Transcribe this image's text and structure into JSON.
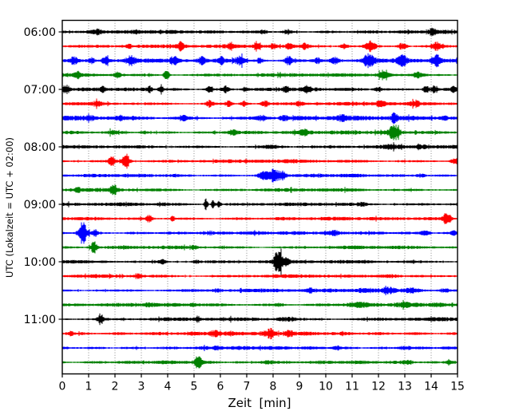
{
  "figure": {
    "background": "#ffffff",
    "axis_color": "#000000",
    "grid_color": "#7a7a7a"
  },
  "chart_data": {
    "type": "line",
    "subtype": "helicorder-seismogram-drum-plot",
    "title": "",
    "xlabel": "Zeit  [min]",
    "ylabel": "UTC (Lokalzeit = UTC + 02:00)",
    "xlim": [
      0,
      15
    ],
    "minutes_per_line": 15,
    "x_ticks": [
      "0",
      "1",
      "2",
      "3",
      "4",
      "5",
      "6",
      "7",
      "8",
      "9",
      "10",
      "11",
      "12",
      "13",
      "14",
      "15"
    ],
    "y_tick_labels": [
      "06:00",
      "07:00",
      "08:00",
      "09:00",
      "10:00",
      "11:00"
    ],
    "grid": {
      "vertical": true,
      "horizontal": false,
      "style": "dotted"
    },
    "trace_color_cycle": [
      "#000000",
      "#ff0000",
      "#0000ff",
      "#008000"
    ],
    "traces": [
      {
        "start": "06:00",
        "color": "#000000",
        "base_amp": 2.1,
        "events": [
          [
            1.3,
            1.8,
            0.12
          ],
          [
            7.65,
            1.6,
            0.12
          ],
          [
            8.55,
            1.8,
            0.1
          ],
          [
            14.05,
            3.2,
            0.1
          ]
        ]
      },
      {
        "start": "06:15",
        "color": "#ff0000",
        "base_amp": 2.0,
        "events": [
          [
            2.5,
            1.8,
            0.1
          ],
          [
            4.5,
            3.8,
            0.1
          ],
          [
            6.4,
            2.8,
            0.09
          ],
          [
            7.4,
            2.4,
            0.09
          ],
          [
            8.0,
            2.4,
            0.09
          ],
          [
            8.6,
            2.8,
            0.09
          ],
          [
            9.2,
            2.4,
            0.09
          ],
          [
            10.7,
            2.8,
            0.1
          ],
          [
            11.7,
            4.8,
            0.13
          ],
          [
            12.9,
            3.2,
            0.12
          ],
          [
            14.2,
            3.8,
            0.12
          ]
        ]
      },
      {
        "start": "06:30",
        "color": "#0000ff",
        "base_amp": 2.3,
        "events": [
          [
            0.45,
            3.8,
            0.1
          ],
          [
            1.1,
            2.8,
            0.08
          ],
          [
            1.65,
            3.8,
            0.1
          ],
          [
            2.6,
            4.2,
            0.12
          ],
          [
            4.25,
            4.2,
            0.1
          ],
          [
            5.3,
            3.2,
            0.1
          ],
          [
            6.05,
            2.8,
            0.08
          ],
          [
            6.75,
            4.2,
            0.12
          ],
          [
            7.5,
            2.8,
            0.08
          ],
          [
            8.6,
            4.2,
            0.1
          ],
          [
            9.7,
            2.3,
            0.08
          ],
          [
            10.35,
            3.2,
            0.12
          ],
          [
            11.65,
            7.0,
            0.15
          ],
          [
            12.9,
            5.2,
            0.12
          ],
          [
            14.2,
            6.2,
            0.12
          ]
        ]
      },
      {
        "start": "06:45",
        "color": "#008000",
        "base_amp": 2.1,
        "events": [
          [
            0.6,
            2.8,
            0.1
          ],
          [
            2.1,
            2.3,
            0.08
          ],
          [
            3.95,
            5.2,
            0.07
          ],
          [
            12.2,
            3.3,
            0.18
          ],
          [
            13.5,
            2.8,
            0.12
          ]
        ]
      },
      {
        "start": "07:00",
        "color": "#000000",
        "base_amp": 2.1,
        "events": [
          [
            0.15,
            3.8,
            0.1
          ],
          [
            1.55,
            2.3,
            0.08
          ],
          [
            3.3,
            2.8,
            0.09
          ],
          [
            3.75,
            2.3,
            0.08
          ],
          [
            5.6,
            3.8,
            0.08
          ],
          [
            6.2,
            3.3,
            0.08
          ],
          [
            6.95,
            2.3,
            0.08
          ],
          [
            8.5,
            2.3,
            0.1
          ],
          [
            9.3,
            2.8,
            0.1
          ],
          [
            12.0,
            2.3,
            0.1
          ],
          [
            13.8,
            3.3,
            0.08
          ],
          [
            14.1,
            2.8,
            0.08
          ],
          [
            14.85,
            2.4,
            0.08
          ]
        ]
      },
      {
        "start": "07:15",
        "color": "#ff0000",
        "base_amp": 2.0,
        "events": [
          [
            1.35,
            2.8,
            0.1
          ],
          [
            5.6,
            3.3,
            0.09
          ],
          [
            6.3,
            2.8,
            0.08
          ],
          [
            6.9,
            2.4,
            0.08
          ],
          [
            7.7,
            2.8,
            0.1
          ],
          [
            9.0,
            2.4,
            0.08
          ],
          [
            12.1,
            2.4,
            0.12
          ],
          [
            13.4,
            2.4,
            0.1
          ]
        ]
      },
      {
        "start": "07:30",
        "color": "#0000ff",
        "base_amp": 2.6,
        "events": [
          [
            1.05,
            1.8,
            0.1
          ],
          [
            2.2,
            1.8,
            0.1
          ],
          [
            4.6,
            2.3,
            0.12
          ],
          [
            7.6,
            2.3,
            0.15
          ],
          [
            8.4,
            1.8,
            0.1
          ],
          [
            10.6,
            1.8,
            0.15
          ],
          [
            12.6,
            5.0,
            0.07
          ],
          [
            14.5,
            1.8,
            0.1
          ]
        ]
      },
      {
        "start": "07:45",
        "color": "#008000",
        "base_amp": 2.1,
        "events": [
          [
            1.9,
            1.8,
            0.12
          ],
          [
            3.1,
            1.6,
            0.1
          ],
          [
            6.5,
            2.2,
            0.15
          ],
          [
            9.2,
            3.6,
            0.1
          ],
          [
            12.6,
            7.5,
            0.14
          ]
        ]
      },
      {
        "start": "08:00",
        "color": "#000000",
        "base_amp": 2.0,
        "events": [
          [
            8.0,
            1.2,
            0.3
          ],
          [
            12.5,
            1.4,
            0.2
          ],
          [
            13.6,
            1.4,
            0.15
          ]
        ]
      },
      {
        "start": "08:15",
        "color": "#ff0000",
        "base_amp": 2.0,
        "events": [
          [
            1.9,
            6.0,
            0.09
          ],
          [
            2.42,
            8.5,
            0.1
          ],
          [
            14.9,
            2.8,
            0.1
          ]
        ]
      },
      {
        "start": "08:30",
        "color": "#0000ff",
        "base_amp": 2.0,
        "events": [
          [
            7.62,
            3.5,
            0.12
          ],
          [
            8.0,
            6.0,
            0.16
          ],
          [
            8.35,
            4.0,
            0.12
          ],
          [
            13.6,
            1.8,
            0.12
          ]
        ]
      },
      {
        "start": "08:45",
        "color": "#008000",
        "base_amp": 2.0,
        "events": [
          [
            0.6,
            1.8,
            0.1
          ],
          [
            1.97,
            4.8,
            0.1
          ]
        ]
      },
      {
        "start": "09:00",
        "color": "#000000",
        "base_amp": 2.0,
        "events": [
          [
            3.8,
            1.4,
            0.1
          ],
          [
            5.45,
            5.5,
            0.05
          ],
          [
            5.72,
            3.5,
            0.05
          ],
          [
            5.95,
            2.8,
            0.05
          ],
          [
            11.4,
            1.8,
            0.08
          ]
        ]
      },
      {
        "start": "09:15",
        "color": "#ff0000",
        "base_amp": 2.0,
        "events": [
          [
            3.3,
            3.6,
            0.07
          ],
          [
            4.2,
            2.2,
            0.07
          ],
          [
            14.6,
            6.0,
            0.11
          ]
        ]
      },
      {
        "start": "09:30",
        "color": "#0000ff",
        "base_amp": 2.0,
        "events": [
          [
            0.78,
            12.0,
            0.12
          ],
          [
            1.25,
            3.0,
            0.08
          ],
          [
            10.3,
            2.2,
            0.15
          ],
          [
            13.8,
            2.6,
            0.12
          ],
          [
            14.9,
            1.8,
            0.1
          ]
        ]
      },
      {
        "start": "09:45",
        "color": "#008000",
        "base_amp": 2.0,
        "events": [
          [
            1.2,
            6.5,
            0.08
          ],
          [
            5.0,
            1.4,
            0.1
          ]
        ]
      },
      {
        "start": "10:00",
        "color": "#000000",
        "base_amp": 2.0,
        "events": [
          [
            3.8,
            1.8,
            0.1
          ],
          [
            5.1,
            1.4,
            0.1
          ],
          [
            8.18,
            11.0,
            0.1
          ],
          [
            8.45,
            3.5,
            0.1
          ]
        ]
      },
      {
        "start": "10:15",
        "color": "#ff0000",
        "base_amp": 2.0,
        "events": [
          [
            2.9,
            2.2,
            0.1
          ],
          [
            12.4,
            1.6,
            0.3
          ]
        ]
      },
      {
        "start": "10:30",
        "color": "#0000ff",
        "base_amp": 2.0,
        "events": [
          [
            5.9,
            1.6,
            0.1
          ],
          [
            9.4,
            1.8,
            0.1
          ],
          [
            11.5,
            2.0,
            0.25
          ],
          [
            12.4,
            2.4,
            0.2
          ],
          [
            13.3,
            2.0,
            0.25
          ],
          [
            14.5,
            1.8,
            0.15
          ]
        ]
      },
      {
        "start": "10:45",
        "color": "#008000",
        "base_amp": 2.0,
        "events": [
          [
            3.3,
            1.4,
            0.12
          ],
          [
            5.0,
            1.3,
            0.1
          ],
          [
            8.2,
            1.6,
            0.15
          ],
          [
            11.2,
            1.5,
            0.35
          ],
          [
            13.0,
            1.6,
            0.3
          ],
          [
            14.3,
            1.5,
            0.2
          ]
        ]
      },
      {
        "start": "11:00",
        "color": "#000000",
        "base_amp": 2.1,
        "events": [
          [
            1.45,
            5.5,
            0.07
          ],
          [
            5.15,
            2.2,
            0.07
          ],
          [
            8.5,
            1.6,
            0.25
          ]
        ]
      },
      {
        "start": "11:15",
        "color": "#ff0000",
        "base_amp": 2.3,
        "events": [
          [
            0.3,
            1.8,
            0.1
          ],
          [
            5.8,
            2.4,
            0.15
          ],
          [
            7.9,
            3.6,
            0.13
          ],
          [
            8.6,
            2.8,
            0.1
          ]
        ]
      },
      {
        "start": "11:30",
        "color": "#0000ff",
        "base_amp": 2.1,
        "events": [
          [
            5.9,
            1.8,
            0.1
          ],
          [
            10.4,
            1.8,
            0.1
          ],
          [
            13.0,
            1.5,
            0.2
          ]
        ]
      },
      {
        "start": "11:45",
        "color": "#008000",
        "base_amp": 2.0,
        "events": [
          [
            5.15,
            7.0,
            0.09
          ],
          [
            7.8,
            1.6,
            0.2
          ],
          [
            13.1,
            2.2,
            0.13
          ],
          [
            14.7,
            1.8,
            0.12
          ]
        ]
      }
    ]
  }
}
